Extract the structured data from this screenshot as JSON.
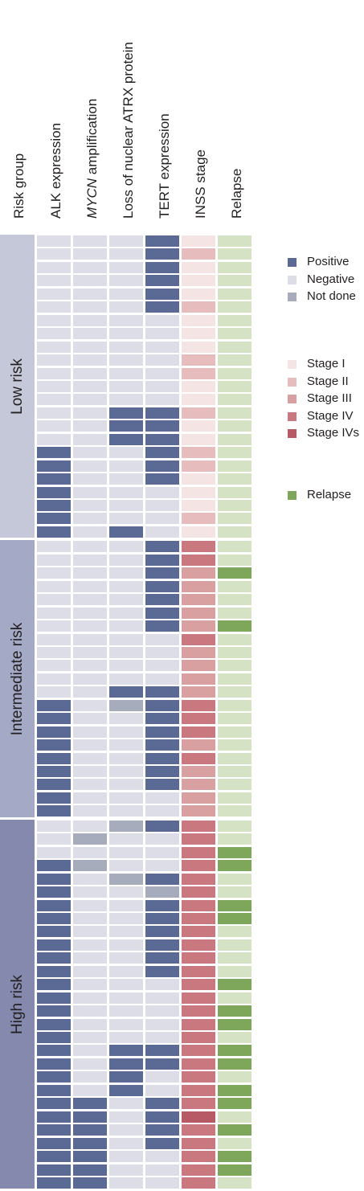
{
  "chart_data": {
    "type": "heatmap",
    "columns": [
      {
        "key": "alk",
        "label": "ALK expression",
        "italic_prefix": ""
      },
      {
        "key": "mycn",
        "label": " amplification",
        "italic_prefix": "MYCN"
      },
      {
        "key": "atrx",
        "label": "Loss of nuclear ATRX protein",
        "italic_prefix": ""
      },
      {
        "key": "tert",
        "label": "TERT expression",
        "italic_prefix": ""
      },
      {
        "key": "inss",
        "label": "INSS stage",
        "italic_prefix": ""
      },
      {
        "key": "relapse",
        "label": "Relapse",
        "italic_prefix": ""
      }
    ],
    "risk_group_header": "Risk group",
    "groups": [
      {
        "label": "Low risk",
        "color": "#c5c8d9",
        "rows": [
          [
            "neg",
            "neg",
            "neg",
            "pos",
            "I",
            "no"
          ],
          [
            "neg",
            "neg",
            "neg",
            "pos",
            "II",
            "no"
          ],
          [
            "neg",
            "neg",
            "neg",
            "pos",
            "I",
            "no"
          ],
          [
            "neg",
            "neg",
            "neg",
            "pos",
            "I",
            "no"
          ],
          [
            "neg",
            "neg",
            "neg",
            "pos",
            "I",
            "no"
          ],
          [
            "neg",
            "neg",
            "neg",
            "pos",
            "II",
            "no"
          ],
          [
            "neg",
            "neg",
            "neg",
            "neg",
            "I",
            "no"
          ],
          [
            "neg",
            "neg",
            "neg",
            "neg",
            "I",
            "no"
          ],
          [
            "neg",
            "neg",
            "neg",
            "neg",
            "I",
            "no"
          ],
          [
            "neg",
            "neg",
            "neg",
            "neg",
            "II",
            "no"
          ],
          [
            "neg",
            "neg",
            "neg",
            "neg",
            "II",
            "no"
          ],
          [
            "neg",
            "neg",
            "neg",
            "neg",
            "I",
            "no"
          ],
          [
            "neg",
            "neg",
            "neg",
            "neg",
            "I",
            "no"
          ],
          [
            "neg",
            "neg",
            "pos",
            "pos",
            "II",
            "no"
          ],
          [
            "neg",
            "neg",
            "pos",
            "pos",
            "I",
            "no"
          ],
          [
            "neg",
            "neg",
            "pos",
            "pos",
            "I",
            "no"
          ],
          [
            "pos",
            "neg",
            "neg",
            "pos",
            "II",
            "no"
          ],
          [
            "pos",
            "neg",
            "neg",
            "pos",
            "II",
            "no"
          ],
          [
            "pos",
            "neg",
            "neg",
            "pos",
            "I",
            "no"
          ],
          [
            "pos",
            "neg",
            "neg",
            "neg",
            "I",
            "no"
          ],
          [
            "pos",
            "neg",
            "neg",
            "neg",
            "I",
            "no"
          ],
          [
            "pos",
            "neg",
            "neg",
            "neg",
            "II",
            "no"
          ],
          [
            "pos",
            "neg",
            "pos",
            "neg",
            "I",
            "no"
          ]
        ]
      },
      {
        "label": "Intermediate risk",
        "color": "#a4a9c6",
        "rows": [
          [
            "neg",
            "neg",
            "neg",
            "pos",
            "IV",
            "no"
          ],
          [
            "neg",
            "neg",
            "neg",
            "pos",
            "IV",
            "no"
          ],
          [
            "neg",
            "neg",
            "neg",
            "pos",
            "III",
            "yes"
          ],
          [
            "neg",
            "neg",
            "neg",
            "pos",
            "III",
            "no"
          ],
          [
            "neg",
            "neg",
            "neg",
            "pos",
            "III",
            "no"
          ],
          [
            "neg",
            "neg",
            "neg",
            "pos",
            "III",
            "no"
          ],
          [
            "neg",
            "neg",
            "neg",
            "pos",
            "III",
            "yes"
          ],
          [
            "neg",
            "neg",
            "neg",
            "neg",
            "IV",
            "no"
          ],
          [
            "neg",
            "neg",
            "neg",
            "neg",
            "III",
            "no"
          ],
          [
            "neg",
            "neg",
            "neg",
            "neg",
            "III",
            "no"
          ],
          [
            "neg",
            "neg",
            "neg",
            "neg",
            "III",
            "no"
          ],
          [
            "neg",
            "neg",
            "pos",
            "pos",
            "III",
            "no"
          ],
          [
            "pos",
            "neg",
            "nd",
            "pos",
            "IV",
            "no"
          ],
          [
            "pos",
            "neg",
            "neg",
            "pos",
            "IV",
            "no"
          ],
          [
            "pos",
            "neg",
            "neg",
            "pos",
            "IV",
            "no"
          ],
          [
            "pos",
            "neg",
            "neg",
            "pos",
            "III",
            "no"
          ],
          [
            "pos",
            "neg",
            "neg",
            "pos",
            "IV",
            "no"
          ],
          [
            "pos",
            "neg",
            "neg",
            "pos",
            "III",
            "no"
          ],
          [
            "pos",
            "neg",
            "neg",
            "pos",
            "III",
            "no"
          ],
          [
            "pos",
            "neg",
            "neg",
            "neg",
            "III",
            "no"
          ],
          [
            "pos",
            "neg",
            "neg",
            "neg",
            "III",
            "no"
          ]
        ]
      },
      {
        "label": "High risk",
        "color": "#8489ad",
        "rows": [
          [
            "neg",
            "neg",
            "nd",
            "pos",
            "IV",
            "no"
          ],
          [
            "neg",
            "nd",
            "neg",
            "neg",
            "IV",
            "no"
          ],
          [
            "neg",
            "neg",
            "neg",
            "neg",
            "IV",
            "yes"
          ],
          [
            "pos",
            "nd",
            "neg",
            "neg",
            "IV",
            "yes"
          ],
          [
            "pos",
            "neg",
            "nd",
            "pos",
            "IV",
            "no"
          ],
          [
            "pos",
            "neg",
            "neg",
            "nd",
            "IV",
            "no"
          ],
          [
            "pos",
            "neg",
            "neg",
            "pos",
            "IV",
            "yes"
          ],
          [
            "pos",
            "neg",
            "neg",
            "pos",
            "IV",
            "yes"
          ],
          [
            "pos",
            "neg",
            "neg",
            "pos",
            "IV",
            "no"
          ],
          [
            "pos",
            "neg",
            "neg",
            "pos",
            "IV",
            "no"
          ],
          [
            "pos",
            "neg",
            "neg",
            "pos",
            "IV",
            "no"
          ],
          [
            "pos",
            "neg",
            "neg",
            "pos",
            "IV",
            "no"
          ],
          [
            "pos",
            "neg",
            "neg",
            "neg",
            "IV",
            "yes"
          ],
          [
            "pos",
            "neg",
            "neg",
            "neg",
            "IV",
            "no"
          ],
          [
            "pos",
            "neg",
            "neg",
            "neg",
            "IV",
            "yes"
          ],
          [
            "pos",
            "neg",
            "neg",
            "neg",
            "IV",
            "yes"
          ],
          [
            "pos",
            "neg",
            "neg",
            "neg",
            "IV",
            "no"
          ],
          [
            "pos",
            "neg",
            "pos",
            "pos",
            "IV",
            "yes"
          ],
          [
            "pos",
            "neg",
            "pos",
            "pos",
            "IV",
            "yes"
          ],
          [
            "pos",
            "neg",
            "pos",
            "neg",
            "IV",
            "no"
          ],
          [
            "pos",
            "neg",
            "pos",
            "neg",
            "IV",
            "yes"
          ],
          [
            "pos",
            "pos",
            "neg",
            "pos",
            "IV",
            "yes"
          ],
          [
            "pos",
            "pos",
            "neg",
            "pos",
            "IVs",
            "no"
          ],
          [
            "pos",
            "pos",
            "neg",
            "pos",
            "IV",
            "yes"
          ],
          [
            "pos",
            "pos",
            "neg",
            "pos",
            "IV",
            "no"
          ],
          [
            "pos",
            "pos",
            "neg",
            "neg",
            "IV",
            "yes"
          ],
          [
            "pos",
            "pos",
            "neg",
            "neg",
            "IV",
            "yes"
          ],
          [
            "pos",
            "pos",
            "neg",
            "neg",
            "IV",
            "no"
          ]
        ]
      }
    ],
    "colors": {
      "pos": "#5b6a94",
      "neg": "#dcdde7",
      "nd": "#a7acbd",
      "I": "#f5e4e4",
      "II": "#e7bcbd",
      "III": "#d9a0a2",
      "IV": "#c97880",
      "IVs": "#b85a66",
      "yes": "#7fa75c",
      "no": "#d6e2c4"
    },
    "legend": {
      "status": [
        {
          "key": "pos",
          "label": "Positive"
        },
        {
          "key": "neg",
          "label": "Negative"
        },
        {
          "key": "nd",
          "label": "Not done"
        }
      ],
      "stage": [
        {
          "key": "I",
          "label": "Stage I"
        },
        {
          "key": "II",
          "label": "Stage II"
        },
        {
          "key": "III",
          "label": "Stage III"
        },
        {
          "key": "IV",
          "label": "Stage IV"
        },
        {
          "key": "IVs",
          "label": "Stage IVs"
        }
      ],
      "relapse": [
        {
          "key": "yes",
          "label": "Relapse"
        }
      ]
    }
  }
}
